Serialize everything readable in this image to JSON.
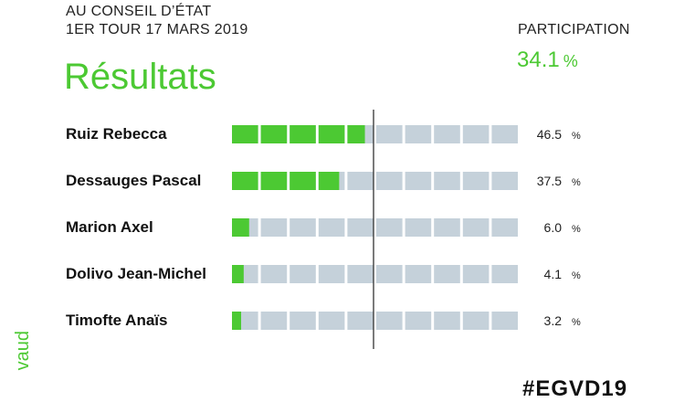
{
  "header": {
    "line1": "AU CONSEIL D’ÉTAT",
    "line2": "1ER TOUR 17 MARS 2019",
    "title": "Résultats"
  },
  "participation": {
    "label": "PARTICIPATION",
    "value": "34.1",
    "unit": "%"
  },
  "footer": {
    "logo_text": "vaud",
    "hashtag": "#EGVD19"
  },
  "colors": {
    "accent": "#4cc933",
    "track": "#c5d1da",
    "text": "#111111"
  },
  "chart_data": {
    "type": "bar",
    "orientation": "horizontal",
    "categories": [
      "Ruiz Rebecca",
      "Dessauges Pascal",
      "Marion Axel",
      "Dolivo Jean-Michel",
      "Timofte Anaïs"
    ],
    "values": [
      46.5,
      37.5,
      6.0,
      4.1,
      3.2
    ],
    "value_labels": [
      "46.5",
      "37.5",
      "6.0",
      "4.1",
      "3.2"
    ],
    "unit": "%",
    "xlim": [
      0,
      100
    ],
    "segments": 10,
    "reference_line": 50
  }
}
